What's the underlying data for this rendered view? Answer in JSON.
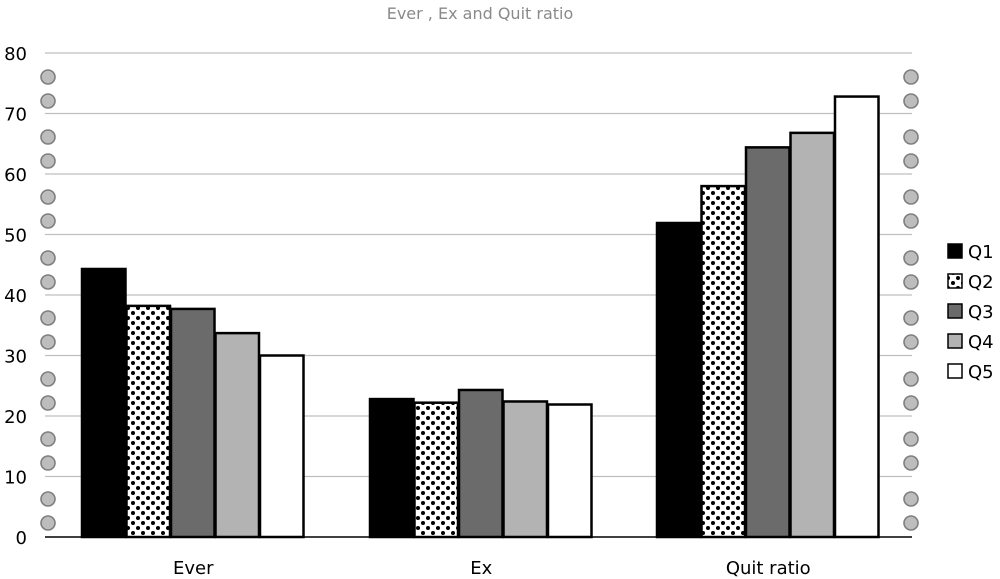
{
  "chart_data": {
    "type": "bar",
    "title": "Ever , Ex and Quit ratio",
    "xlabel": "",
    "ylabel": "",
    "ylim": [
      0,
      80
    ],
    "yticks": [
      "0",
      "10",
      "20",
      "30",
      "40",
      "50",
      "60",
      "70",
      "80"
    ],
    "categories": [
      "Ever",
      "Ex",
      "Quit ratio"
    ],
    "grid": true,
    "legend_position": "right",
    "series": [
      {
        "name": "Q1",
        "values": [
          44.3,
          22.8,
          51.9
        ],
        "color": "#000000",
        "pattern": "solid"
      },
      {
        "name": "Q2",
        "values": [
          38.2,
          22.2,
          58.0
        ],
        "color": "#ffffff",
        "pattern": "dots"
      },
      {
        "name": "Q3",
        "values": [
          37.7,
          24.3,
          64.4
        ],
        "color": "#6b6b6b",
        "pattern": "solid"
      },
      {
        "name": "Q4",
        "values": [
          33.7,
          22.4,
          66.8
        ],
        "color": "#b3b3b3",
        "pattern": "solid"
      },
      {
        "name": "Q5",
        "values": [
          30.0,
          21.9,
          72.8
        ],
        "color": "#ffffff",
        "pattern": "solid"
      }
    ]
  }
}
